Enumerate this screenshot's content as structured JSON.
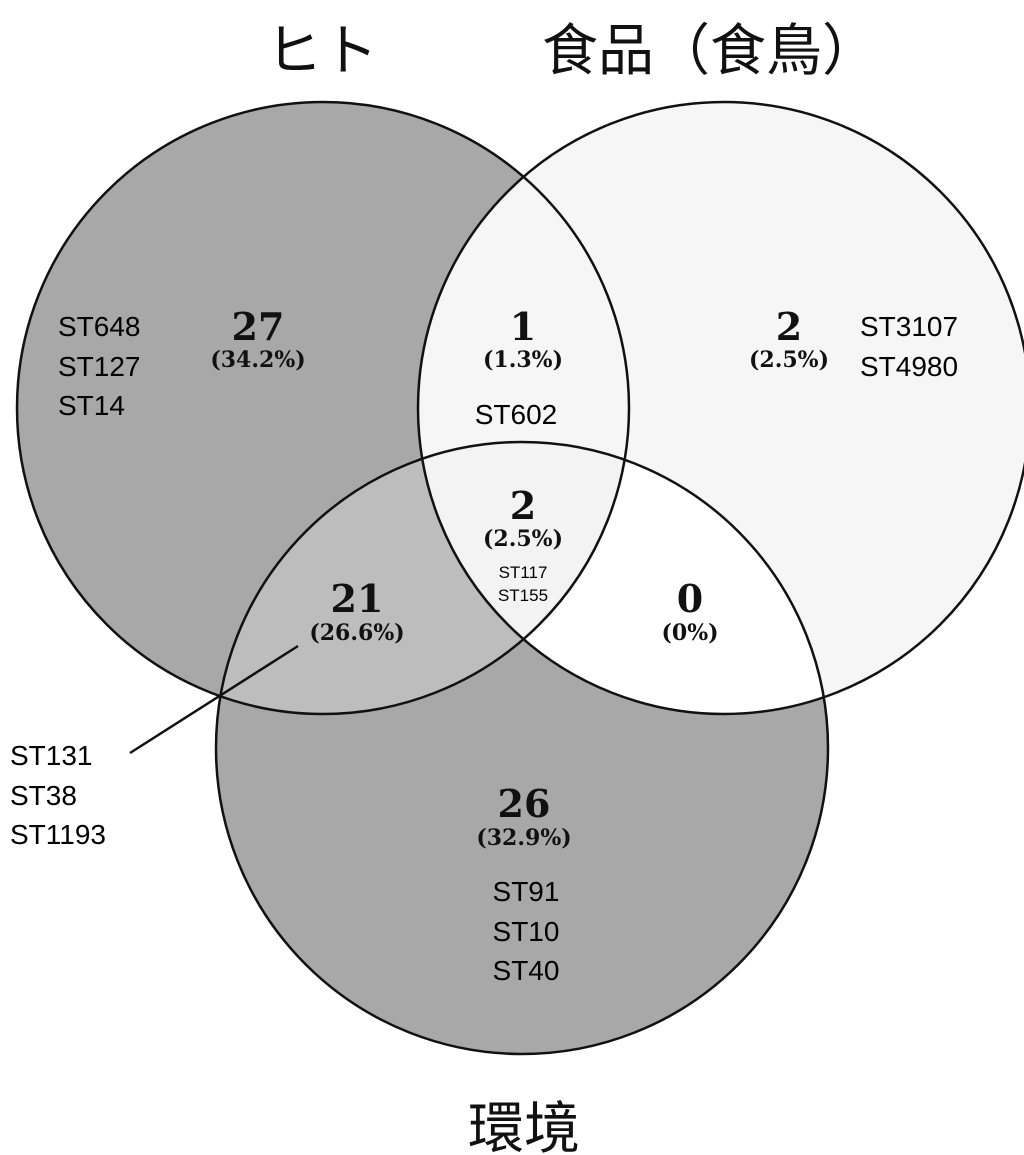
{
  "sets": {
    "human": "ヒト",
    "food": "食品（食鳥）",
    "environment": "環境"
  },
  "colors": {
    "human_only": "#a8a8a8",
    "env_only": "#a8a8a8",
    "human_env": "#bdbdbd",
    "food_only": "#f6f6f6",
    "human_food": "#f6f6f6",
    "all_three": "#f3f3f3",
    "food_env": "#ffffff",
    "outline": "#111111"
  },
  "regions": {
    "human_only": {
      "count": "27",
      "percent": "(34.2%)",
      "sts": [
        "ST648",
        "ST127",
        "ST14"
      ]
    },
    "food_only": {
      "count": "2",
      "percent": "(2.5%)",
      "sts": [
        "ST3107",
        "ST4980"
      ]
    },
    "env_only": {
      "count": "26",
      "percent": "(32.9%)",
      "sts": [
        "ST91",
        "ST10",
        "ST40"
      ]
    },
    "human_food": {
      "count": "1",
      "percent": "(1.3%)",
      "sts": [
        "ST602"
      ]
    },
    "human_env": {
      "count": "21",
      "percent": "(26.6%)",
      "sts": [
        "ST131",
        "ST38",
        "ST1193"
      ]
    },
    "food_env": {
      "count": "0",
      "percent": "(0%)",
      "sts": []
    },
    "all_three": {
      "count": "2",
      "percent": "(2.5%)",
      "sts": [
        "ST117",
        "ST155"
      ]
    }
  }
}
